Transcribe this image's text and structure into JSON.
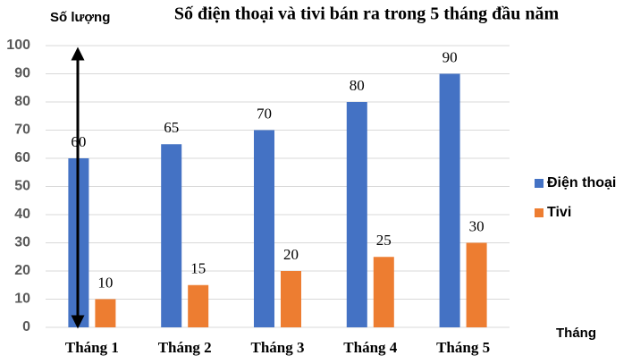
{
  "chart_data": {
    "type": "bar",
    "title": "Số điện thoại và tivi bán ra trong 5 tháng đầu năm",
    "y_label": "Số lượng",
    "x_label": "Tháng",
    "categories": [
      "Tháng 1",
      "Tháng 2",
      "Tháng 3",
      "Tháng 4",
      "Tháng 5"
    ],
    "series": [
      {
        "name": "Điện thoại",
        "color": "#4472c4",
        "values": [
          60,
          65,
          70,
          80,
          90
        ]
      },
      {
        "name": "Tivi",
        "color": "#ed7d31",
        "values": [
          10,
          15,
          20,
          25,
          30
        ]
      }
    ],
    "ylim": [
      0,
      100
    ],
    "yticks": [
      0,
      10,
      20,
      30,
      40,
      50,
      60,
      70,
      80,
      90,
      100
    ],
    "grid": true
  }
}
